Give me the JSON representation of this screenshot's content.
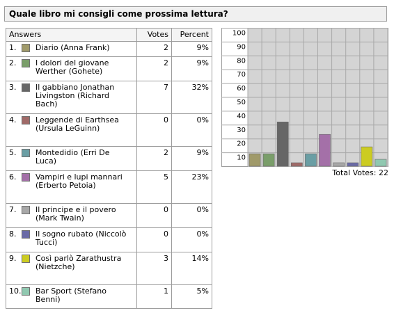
{
  "poll": {
    "title": "Quale libro mi consigli come prossima lettura?",
    "headers": {
      "answers": "Answers",
      "votes": "Votes",
      "percent": "Percent"
    },
    "total_label": "Total Votes:",
    "total_votes": "22"
  },
  "colors": [
    "#a09a6a",
    "#7a9e6a",
    "#666666",
    "#a06a68",
    "#6a9ea4",
    "#a470a8",
    "#a8a8a8",
    "#6a6aa6",
    "#cccc22",
    "#90c8b0"
  ],
  "rows": [
    {
      "num": "1.",
      "label": "Diario (Anna Frank)",
      "votes": "2",
      "percent": "9%"
    },
    {
      "num": "2.",
      "label": "I dolori del giovane Werther (Gohete)",
      "votes": "2",
      "percent": "9%"
    },
    {
      "num": "3.",
      "label": "Il gabbiano Jonathan Livingston (Richard Bach)",
      "votes": "7",
      "percent": "32%"
    },
    {
      "num": "4.",
      "label": "Leggende di Earthsea (Ursula LeGuinn)",
      "votes": "0",
      "percent": "0%"
    },
    {
      "num": "5.",
      "label": "Montedidio (Erri De Luca)",
      "votes": "2",
      "percent": "9%"
    },
    {
      "num": "6.",
      "label": "Vampiri e lupi mannari (Erberto Petoia)",
      "votes": "5",
      "percent": "23%"
    },
    {
      "num": "7.",
      "label": "Il principe e il povero (Mark Twain)",
      "votes": "0",
      "percent": "0%"
    },
    {
      "num": "8.",
      "label": "Il sogno rubato (Niccolò Tucci)",
      "votes": "0",
      "percent": "0%"
    },
    {
      "num": "9.",
      "label": "Così parlò Zarathustra (Nietzche)",
      "votes": "3",
      "percent": "14%"
    },
    {
      "num": "10.",
      "label": "Bar Sport (Stefano Benni)",
      "votes": "1",
      "percent": "5%"
    }
  ],
  "chart_data": {
    "type": "bar",
    "categories": [
      "1",
      "2",
      "3",
      "4",
      "5",
      "6",
      "7",
      "8",
      "9",
      "10"
    ],
    "values": [
      9,
      9,
      32,
      0,
      9,
      23,
      0,
      0,
      14,
      5
    ],
    "ylim": [
      0,
      100
    ],
    "yticks": [
      "10",
      "20",
      "30",
      "40",
      "50",
      "60",
      "70",
      "80",
      "90",
      "100"
    ],
    "grid": true
  }
}
